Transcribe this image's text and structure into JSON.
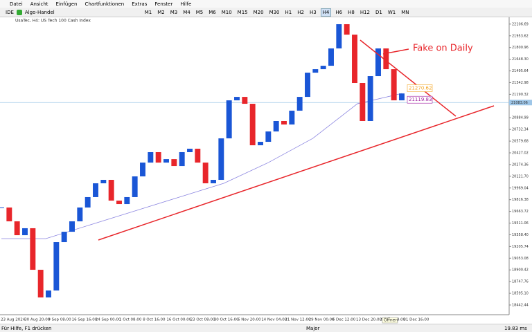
{
  "menu": [
    "Datei",
    "Ansicht",
    "Einfügen",
    "Chartfunktionen",
    "Extras",
    "Fenster",
    "Hilfe"
  ],
  "toolbar": {
    "ide": "IDE",
    "algo": "Algo-Handel",
    "timeframes": [
      "M1",
      "M2",
      "M3",
      "M4",
      "M5",
      "M6",
      "M10",
      "M15",
      "M20",
      "M30",
      "H1",
      "H2",
      "H3",
      "H4",
      "H6",
      "H8",
      "H12",
      "D1",
      "W1",
      "MN"
    ],
    "active": "H4"
  },
  "chart_data": {
    "type": "candlestick",
    "title": "UsaTec, H4:  US Tech 100 Cash Index",
    "up_color": "#1a56d6",
    "down_color": "#e8262b",
    "ma_color": "#8a84e0",
    "ylim": [
      18316,
      22150
    ],
    "yticks": [
      {
        "value": 22106.69,
        "label": "22106.69"
      },
      {
        "value": 21953.62,
        "label": "21953.62"
      },
      {
        "value": 21800.96,
        "label": "21800.96"
      },
      {
        "value": 21648.3,
        "label": "21648.30"
      },
      {
        "value": 21495.64,
        "label": "21495.64"
      },
      {
        "value": 21342.98,
        "label": "21342.98"
      },
      {
        "value": 21190.32,
        "label": "21190.32"
      },
      {
        "value": 20884.99,
        "label": "20884.99"
      },
      {
        "value": 20732.34,
        "label": "20732.34"
      },
      {
        "value": 20579.68,
        "label": "20579.68"
      },
      {
        "value": 20427.02,
        "label": "20427.02"
      },
      {
        "value": 20274.36,
        "label": "20274.36"
      },
      {
        "value": 20121.7,
        "label": "20121.70"
      },
      {
        "value": 19969.04,
        "label": "19969.04"
      },
      {
        "value": 19816.38,
        "label": "19816.38"
      },
      {
        "value": 19663.72,
        "label": "19663.72"
      },
      {
        "value": 19511.06,
        "label": "19511.06"
      },
      {
        "value": 19358.4,
        "label": "19358.40"
      },
      {
        "value": 19205.74,
        "label": "19205.74"
      },
      {
        "value": 19053.08,
        "label": "19053.08"
      },
      {
        "value": 18900.42,
        "label": "18900.42"
      },
      {
        "value": 18747.76,
        "label": "18747.76"
      },
      {
        "value": 18595.1,
        "label": "18595.10"
      },
      {
        "value": 18442.44,
        "label": "18442.44"
      }
    ],
    "xticks": [
      "23 Aug 2024",
      "30 Aug 20:00",
      "9 Sep 08:00",
      "16 Sep 16:00",
      "24 Sep 00:00",
      "1 Oct 08:00",
      "8 Oct 16:00",
      "16 Oct 00:00",
      "23 Oct 08:00",
      "30 Oct 16:00",
      "6 Nov 20:00",
      "14 Nov 04:00",
      "21 Nov 12:00",
      "29 Nov 00:00",
      "6 Dec 12:00",
      "13 Dec 20:00",
      "23 Dec 04:00",
      "31 Dec 16:00"
    ],
    "closes": [
      19714,
      19534,
      19353,
      19444,
      18902,
      18541,
      18632,
      19263,
      19398,
      19534,
      19714,
      19850,
      20030,
      20075,
      19804,
      19759,
      19850,
      20120,
      20300,
      20436,
      20300,
      20345,
      20255,
      20436,
      20481,
      20300,
      20030,
      20075,
      20616,
      21112,
      21157,
      21067,
      20526,
      20571,
      20706,
      20842,
      20797,
      20977,
      21157,
      21473,
      21518,
      21563,
      21789,
      22105,
      21969,
      21338,
      20842,
      21428,
      21789,
      21518,
      21112,
      21202
    ],
    "ma_values": [
      19308,
      19308,
      19489,
      19669,
      19850,
      20030,
      20300,
      20616,
      21067,
      21202
    ],
    "current_price": {
      "value": 21083.06,
      "label": "21083.06"
    },
    "annotations": {
      "text": "Fake on Daily",
      "level1": {
        "value": 21270.62,
        "label": "21270.62"
      },
      "level2": {
        "value": 21119.83,
        "label": "21119.83"
      }
    }
  },
  "status": {
    "help": "Für Hilfe, F1 drücken",
    "profile": "Major",
    "ping": "19.83 ms",
    "tooltip": "Öffnen"
  }
}
